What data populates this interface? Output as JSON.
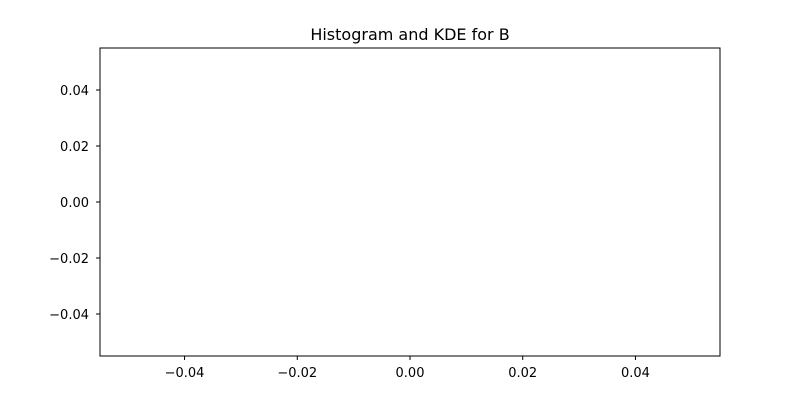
{
  "chart_data": {
    "type": "histogram",
    "title": "Histogram and KDE for B",
    "xlabel": "",
    "ylabel": "",
    "xlim": [
      -0.055,
      0.055
    ],
    "ylim": [
      -0.055,
      0.055
    ],
    "x_ticks": [
      "−0.04",
      "−0.02",
      "0.00",
      "0.02",
      "0.04"
    ],
    "y_ticks": [
      "0.04",
      "0.02",
      "0.00",
      "−0.02",
      "−0.04"
    ],
    "bins": [],
    "kde": [],
    "grid": false,
    "legend": false
  }
}
